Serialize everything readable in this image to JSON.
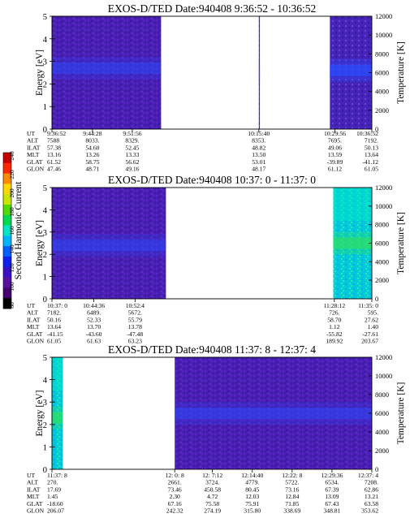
{
  "colorbar": {
    "label": "Second Harmonic Current",
    "ticks": [
      "240",
      "220",
      "200",
      "180",
      "160",
      "140",
      "120",
      "100",
      "80"
    ],
    "colors": [
      "#c80000",
      "#ff2800",
      "#ff8c00",
      "#ffd800",
      "#c8e600",
      "#50dc00",
      "#00d850",
      "#00e8c8",
      "#00b4ff",
      "#0060ff",
      "#1020f0",
      "#3c10c8",
      "#5a10a0",
      "#440070",
      "#000000"
    ]
  },
  "chart_data": [
    {
      "type": "heatmap",
      "title": "EXOS-D/TED   Date:940408   9:36:52 - 10:36:52",
      "ylabel": "Energy [eV]",
      "ylabel_right": "Temperature [K]",
      "ylim": [
        0,
        5
      ],
      "y_ticks": [
        "0",
        "1",
        "2",
        "3",
        "4",
        "5"
      ],
      "ylim_right": [
        0,
        12000
      ],
      "y_ticks_right": [
        "0",
        "2000",
        "4000",
        "6000",
        "8000",
        "10000",
        "12000"
      ],
      "data_segments": [
        {
          "from": "9:36:52",
          "to": "9:57:20",
          "band_center_eV": 2.7,
          "intensity": "low"
        },
        {
          "from": "10:15:40",
          "to": "10:15:52",
          "band_center_eV": 2.5,
          "intensity": "low"
        },
        {
          "from": "10:29:00",
          "to": "10:36:52",
          "band_center_eV": 2.6,
          "intensity": "medium"
        }
      ],
      "table": {
        "row_labels": [
          "UT",
          "ALT",
          "ILAT",
          "MLT",
          "GLAT",
          "GLON"
        ],
        "columns": [
          [
            "9:36:52",
            "7588",
            "57.38",
            "13.16",
            "61.52",
            "47.46"
          ],
          [
            "9:44:28",
            "8033.",
            "54.60",
            "13.26",
            "58.75",
            "48.71"
          ],
          [
            "9:51:56",
            "8329.",
            "52.45",
            "13.33",
            "56.62",
            "49.16"
          ],
          [
            "10:15:40",
            "8353.",
            "48.82",
            "13.50",
            "53.01",
            "48.17"
          ],
          [
            "10:29:56",
            "7695.",
            "49.06",
            "13.59",
            "-39.89",
            "61.12"
          ],
          [
            "10:36:52",
            "7192.",
            "50.13",
            "13.64",
            "-41.12",
            "61.05"
          ]
        ]
      }
    },
    {
      "type": "heatmap",
      "title": "EXOS-D/TED   Date:940408   10:37: 0 - 11:37: 0",
      "ylabel": "Energy [eV]",
      "ylabel_right": "Temperature [K]",
      "ylim": [
        0,
        5
      ],
      "y_ticks": [
        "0",
        "1",
        "2",
        "3",
        "4",
        "5"
      ],
      "ylim_right": [
        0,
        12000
      ],
      "y_ticks_right": [
        "0",
        "2000",
        "4000",
        "6000",
        "8000",
        "10000",
        "12000"
      ],
      "data_segments": [
        {
          "from": "10:37:00",
          "to": "10:57:40",
          "band_center_eV": 2.4,
          "intensity": "low"
        },
        {
          "from": "11:28:00",
          "to": "11:37:00",
          "band_center_eV": 2.5,
          "intensity": "high"
        }
      ],
      "table": {
        "row_labels": [
          "UT",
          "ALT",
          "ILAT",
          "MLT",
          "GLAT",
          "GLON"
        ],
        "columns": [
          [
            "10:37: 0",
            "7182.",
            "50.16",
            "13.64",
            "-41.15",
            "61.05"
          ],
          [
            "10:44:36",
            "6489.",
            "52.33",
            "13.70",
            "-43.60",
            "61.63"
          ],
          [
            "10:52:4",
            "5672.",
            "55.79",
            "13.78",
            "-47.48",
            "63.23"
          ],
          [
            "11:28:12",
            "726.",
            "58.70",
            "1.12",
            "-55.82",
            "189.92"
          ],
          [
            "11:35: 0",
            "595.",
            "27.62",
            "1.40",
            "-27.61",
            "203.67"
          ]
        ]
      }
    },
    {
      "type": "heatmap",
      "title": "EXOS-D/TED   Date:940408   11:37: 8 - 12:37: 4",
      "ylabel": "Energy [eV]",
      "ylabel_right": "Temperature [K]",
      "ylim": [
        0,
        5
      ],
      "y_ticks": [
        "0",
        "1",
        "2",
        "3",
        "4",
        "5"
      ],
      "ylim_right": [
        0,
        12000
      ],
      "y_ticks_right": [
        "0",
        "2000",
        "4000",
        "6000",
        "8000",
        "10000",
        "12000"
      ],
      "data_segments": [
        {
          "from": "11:37:08",
          "to": "11:39:10",
          "band_center_eV": 2.3,
          "intensity": "high"
        },
        {
          "from": "12:00:08",
          "to": "12:37:04",
          "band_center_eV": 2.5,
          "intensity": "low"
        }
      ],
      "table": {
        "row_labels": [
          "UT",
          "ALT",
          "ILAT",
          "MLT",
          "GLAT",
          "GLON"
        ],
        "columns": [
          [
            "11:37: 8",
            "270.",
            "17.69",
            "1.45",
            "-18.60",
            "206.07"
          ],
          [
            "12: 0: 8",
            "2661.",
            "73.46",
            "2.30",
            "67.16",
            "242.32"
          ],
          [
            "12: 7:12",
            "3724.",
            "450.58",
            "4.72",
            "75.58",
            "274.19"
          ],
          [
            "12:14:40",
            "4779.",
            "80.45",
            "12.03",
            "75.91",
            "315.80"
          ],
          [
            "12:22: 8",
            "5722.",
            "73.16",
            "12.84",
            "71.85",
            "338.69"
          ],
          [
            "12:29:36",
            "6534.",
            "67.39",
            "13.09",
            "67.43",
            "348.81"
          ],
          [
            "12:37: 4",
            "7208.",
            "62.86",
            "13.21",
            "63.58",
            "353.62"
          ]
        ]
      }
    }
  ]
}
